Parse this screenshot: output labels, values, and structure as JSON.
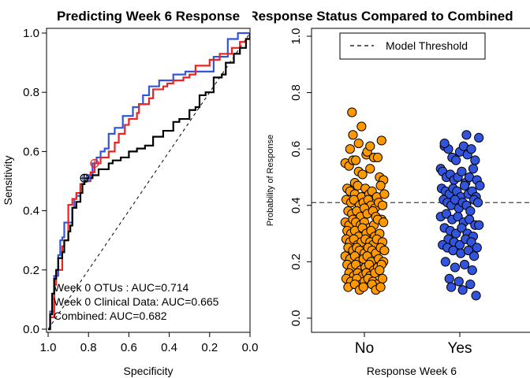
{
  "chart_data": [
    {
      "type": "line",
      "title": "Predicting Week 6 Response",
      "xlabel": "Specificity",
      "ylabel": "Sensitivity",
      "xlim": [
        1.0,
        0.0
      ],
      "ylim": [
        0.0,
        1.0
      ],
      "x_ticks": [
        "1.0",
        "0.8",
        "0.6",
        "0.4",
        "0.2",
        "0.0"
      ],
      "y_ticks": [
        "0.0",
        "0.2",
        "0.4",
        "0.6",
        "0.8",
        "1.0"
      ],
      "reference_line": "diagonal dashed",
      "annotations": [
        "Week 0 OTUs : AUC=0.714",
        "Week 0 Clinical Data: AUC=0.665",
        "Combined: AUC=0.682"
      ],
      "series": [
        {
          "color": "#3355dd",
          "points": [
            [
              1.0,
              0.0
            ],
            [
              0.99,
              0.06
            ],
            [
              0.97,
              0.18
            ],
            [
              0.95,
              0.25
            ],
            [
              0.94,
              0.3
            ],
            [
              0.93,
              0.31
            ],
            [
              0.92,
              0.36
            ],
            [
              0.9,
              0.36
            ],
            [
              0.88,
              0.41
            ],
            [
              0.87,
              0.44
            ],
            [
              0.86,
              0.45
            ],
            [
              0.84,
              0.49
            ],
            [
              0.82,
              0.5
            ],
            [
              0.81,
              0.51
            ],
            [
              0.8,
              0.52
            ],
            [
              0.78,
              0.56
            ],
            [
              0.76,
              0.58
            ],
            [
              0.74,
              0.6
            ],
            [
              0.72,
              0.61
            ],
            [
              0.7,
              0.66
            ],
            [
              0.67,
              0.68
            ],
            [
              0.64,
              0.68
            ],
            [
              0.63,
              0.72
            ],
            [
              0.6,
              0.72
            ],
            [
              0.58,
              0.75
            ],
            [
              0.55,
              0.76
            ],
            [
              0.53,
              0.79
            ],
            [
              0.5,
              0.82
            ],
            [
              0.48,
              0.82
            ],
            [
              0.45,
              0.84
            ],
            [
              0.4,
              0.84
            ],
            [
              0.38,
              0.86
            ],
            [
              0.35,
              0.86
            ],
            [
              0.32,
              0.87
            ],
            [
              0.29,
              0.87
            ],
            [
              0.18,
              0.92
            ],
            [
              0.11,
              0.98
            ],
            [
              0.06,
              1.0
            ],
            [
              0.0,
              1.0
            ]
          ]
        },
        {
          "color": "#ee2222",
          "points": [
            [
              1.0,
              0.0
            ],
            [
              0.99,
              0.04
            ],
            [
              0.97,
              0.15
            ],
            [
              0.96,
              0.2
            ],
            [
              0.93,
              0.28
            ],
            [
              0.92,
              0.3
            ],
            [
              0.9,
              0.32
            ],
            [
              0.9,
              0.42
            ],
            [
              0.88,
              0.44
            ],
            [
              0.86,
              0.46
            ],
            [
              0.85,
              0.46
            ],
            [
              0.84,
              0.49
            ],
            [
              0.83,
              0.49
            ],
            [
              0.82,
              0.5
            ],
            [
              0.8,
              0.5
            ],
            [
              0.79,
              0.53
            ],
            [
              0.77,
              0.56
            ],
            [
              0.76,
              0.56
            ],
            [
              0.74,
              0.58
            ],
            [
              0.7,
              0.6
            ],
            [
              0.67,
              0.63
            ],
            [
              0.65,
              0.66
            ],
            [
              0.62,
              0.69
            ],
            [
              0.6,
              0.71
            ],
            [
              0.56,
              0.73
            ],
            [
              0.55,
              0.76
            ],
            [
              0.5,
              0.78
            ],
            [
              0.48,
              0.81
            ],
            [
              0.45,
              0.81
            ],
            [
              0.43,
              0.82
            ],
            [
              0.41,
              0.83
            ],
            [
              0.38,
              0.84
            ],
            [
              0.35,
              0.84
            ],
            [
              0.33,
              0.85
            ],
            [
              0.3,
              0.86
            ],
            [
              0.29,
              0.86
            ],
            [
              0.27,
              0.89
            ],
            [
              0.2,
              0.91
            ],
            [
              0.15,
              0.93
            ],
            [
              0.09,
              0.95
            ],
            [
              0.05,
              0.97
            ],
            [
              0.02,
              0.98
            ],
            [
              0.0,
              1.0
            ]
          ]
        },
        {
          "color": "#000000",
          "points": [
            [
              1.0,
              0.0
            ],
            [
              0.99,
              0.05
            ],
            [
              0.98,
              0.12
            ],
            [
              0.97,
              0.17
            ],
            [
              0.96,
              0.2
            ],
            [
              0.95,
              0.24
            ],
            [
              0.93,
              0.26
            ],
            [
              0.92,
              0.3
            ],
            [
              0.9,
              0.33
            ],
            [
              0.89,
              0.35
            ],
            [
              0.88,
              0.41
            ],
            [
              0.86,
              0.43
            ],
            [
              0.84,
              0.46
            ],
            [
              0.83,
              0.49
            ],
            [
              0.82,
              0.5
            ],
            [
              0.81,
              0.51
            ],
            [
              0.78,
              0.52
            ],
            [
              0.75,
              0.54
            ],
            [
              0.7,
              0.56
            ],
            [
              0.68,
              0.57
            ],
            [
              0.64,
              0.58
            ],
            [
              0.6,
              0.6
            ],
            [
              0.56,
              0.61
            ],
            [
              0.52,
              0.62
            ],
            [
              0.48,
              0.65
            ],
            [
              0.43,
              0.67
            ],
            [
              0.4,
              0.67
            ],
            [
              0.38,
              0.7
            ],
            [
              0.35,
              0.71
            ],
            [
              0.3,
              0.74
            ],
            [
              0.27,
              0.75
            ],
            [
              0.25,
              0.79
            ],
            [
              0.22,
              0.8
            ],
            [
              0.18,
              0.85
            ],
            [
              0.14,
              0.86
            ],
            [
              0.12,
              0.9
            ],
            [
              0.08,
              0.93
            ],
            [
              0.05,
              0.95
            ],
            [
              0.02,
              0.98
            ],
            [
              0.0,
              1.0
            ]
          ]
        }
      ],
      "threshold_markers": [
        {
          "color": "#3355dd",
          "x": 0.81,
          "y": 0.51
        },
        {
          "color": "#000000",
          "x": 0.82,
          "y": 0.51
        },
        {
          "color": "#ee2222",
          "x": 0.77,
          "y": 0.56
        }
      ]
    },
    {
      "type": "scatter",
      "title": "Response Status Compared to Combined",
      "xlabel": "Response Week 6",
      "ylabel": "Probability of Response",
      "ylim": [
        0.0,
        1.0
      ],
      "categories": [
        "No",
        "Yes"
      ],
      "y_ticks": [
        "0.0",
        "0.2",
        "0.4",
        "0.6",
        "0.8",
        "1.0"
      ],
      "legend": {
        "label": "Model Threshold",
        "position": "top-right"
      },
      "threshold": 0.41,
      "series": [
        {
          "color": "#ff9900",
          "x": [
            0.8,
            0.84,
            0.88,
            0.9,
            0.94,
            0.98,
            1.02,
            1.06,
            1.1,
            1.16,
            1.2,
            0.82,
            0.85,
            0.9,
            0.93,
            0.97,
            1.01,
            1.05,
            1.08,
            1.13,
            1.17,
            1.21,
            0.81,
            0.86,
            0.89,
            0.95,
            0.99,
            1.04,
            1.07,
            1.11,
            1.15,
            1.19,
            0.83,
            0.87,
            0.92,
            0.96,
            1.0,
            1.03,
            1.09,
            1.12,
            1.18,
            0.8,
            0.84,
            0.88,
            0.91,
            0.96,
            1.0,
            1.05,
            1.1,
            1.14,
            1.2,
            0.82,
            0.86,
            0.9,
            0.94,
            0.98,
            1.02,
            1.07,
            1.11,
            1.16,
            0.81,
            0.85,
            0.89,
            0.93,
            0.97,
            1.01,
            1.06,
            1.09,
            1.13,
            1.19,
            0.83,
            0.88,
            0.92,
            0.95,
            1.0,
            1.04,
            1.08,
            1.12,
            1.17,
            1.21,
            0.8,
            0.85,
            0.9,
            0.94,
            0.99,
            1.03,
            1.07,
            1.15,
            1.2,
            0.82,
            0.87,
            0.91,
            0.96,
            1.01,
            1.05,
            1.1,
            1.14,
            1.18,
            0.84,
            0.89,
            0.93,
            0.98,
            1.02,
            1.06,
            1.11,
            1.16,
            0.81,
            0.86,
            0.92,
            0.97,
            1.0,
            1.04,
            1.09,
            1.13,
            1.19,
            0.83,
            0.9,
            0.95,
            0.99,
            1.08,
            1.12,
            1.17,
            0.85,
            0.94,
            1.03,
            1.14,
            0.88,
            0.97,
            1.06,
            1.18,
            0.87,
            0.91
          ],
          "y": [
            0.55,
            0.54,
            0.56,
            0.48,
            0.52,
            0.51,
            0.58,
            0.53,
            0.57,
            0.5,
            0.49,
            0.46,
            0.45,
            0.44,
            0.47,
            0.43,
            0.46,
            0.44,
            0.45,
            0.43,
            0.47,
            0.44,
            0.42,
            0.41,
            0.42,
            0.4,
            0.41,
            0.42,
            0.4,
            0.39,
            0.41,
            0.4,
            0.38,
            0.37,
            0.38,
            0.36,
            0.39,
            0.37,
            0.38,
            0.36,
            0.35,
            0.34,
            0.33,
            0.35,
            0.34,
            0.33,
            0.34,
            0.32,
            0.33,
            0.35,
            0.34,
            0.31,
            0.3,
            0.31,
            0.29,
            0.32,
            0.3,
            0.31,
            0.29,
            0.3,
            0.28,
            0.27,
            0.28,
            0.26,
            0.27,
            0.28,
            0.27,
            0.26,
            0.28,
            0.27,
            0.25,
            0.24,
            0.25,
            0.24,
            0.23,
            0.25,
            0.24,
            0.23,
            0.25,
            0.24,
            0.22,
            0.21,
            0.22,
            0.2,
            0.21,
            0.22,
            0.2,
            0.21,
            0.2,
            0.19,
            0.18,
            0.19,
            0.17,
            0.18,
            0.19,
            0.17,
            0.18,
            0.19,
            0.16,
            0.15,
            0.16,
            0.15,
            0.16,
            0.15,
            0.16,
            0.17,
            0.14,
            0.13,
            0.14,
            0.12,
            0.13,
            0.14,
            0.13,
            0.12,
            0.14,
            0.11,
            0.12,
            0.1,
            0.11,
            0.12,
            0.1,
            0.11,
            0.6,
            0.62,
            0.59,
            0.57,
            0.65,
            0.68,
            0.61,
            0.63,
            0.73,
            0.56
          ],
          "label_category": "No"
        },
        {
          "color": "#3355dd",
          "x": [
            1.8,
            1.84,
            1.88,
            1.92,
            1.96,
            2.0,
            2.04,
            2.08,
            2.12,
            2.16,
            2.2,
            1.82,
            1.86,
            1.9,
            1.94,
            1.98,
            2.02,
            2.06,
            2.1,
            2.14,
            2.18,
            1.81,
            1.85,
            1.89,
            1.93,
            1.97,
            2.01,
            2.05,
            2.09,
            2.13,
            2.17,
            2.21,
            1.83,
            1.87,
            1.91,
            1.95,
            1.99,
            2.03,
            2.07,
            2.11,
            2.15,
            2.19,
            1.8,
            1.86,
            1.92,
            1.98,
            2.04,
            2.1,
            2.16,
            1.84,
            1.9,
            1.96,
            2.02,
            2.08,
            2.14,
            2.2,
            1.88,
            1.94,
            2.0,
            2.06,
            2.12,
            2.18,
            1.82,
            1.87,
            1.93,
            2.01,
            2.09,
            2.15,
            1.85,
            1.95,
            2.05,
            2.13,
            1.89,
            1.99,
            2.11,
            1.91,
            2.03,
            2.17,
            1.84,
            2.07
          ],
          "y": [
            0.53,
            0.61,
            0.6,
            0.57,
            0.56,
            0.59,
            0.61,
            0.58,
            0.6,
            0.56,
            0.64,
            0.52,
            0.5,
            0.51,
            0.49,
            0.5,
            0.52,
            0.48,
            0.5,
            0.53,
            0.49,
            0.46,
            0.45,
            0.44,
            0.46,
            0.45,
            0.43,
            0.47,
            0.44,
            0.45,
            0.43,
            0.47,
            0.42,
            0.41,
            0.4,
            0.42,
            0.39,
            0.41,
            0.4,
            0.38,
            0.42,
            0.41,
            0.36,
            0.37,
            0.35,
            0.36,
            0.34,
            0.35,
            0.33,
            0.32,
            0.31,
            0.3,
            0.32,
            0.3,
            0.29,
            0.33,
            0.28,
            0.27,
            0.26,
            0.28,
            0.27,
            0.25,
            0.26,
            0.25,
            0.24,
            0.23,
            0.24,
            0.22,
            0.2,
            0.18,
            0.19,
            0.17,
            0.14,
            0.13,
            0.12,
            0.11,
            0.1,
            0.08,
            0.62,
            0.65
          ],
          "label_category": "Yes"
        }
      ]
    }
  ]
}
